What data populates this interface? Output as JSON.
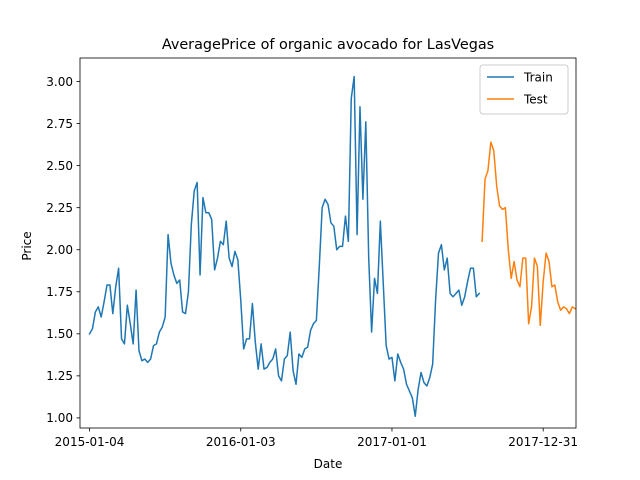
{
  "chart_data": {
    "type": "line",
    "title": "AveragePrice of organic avocado for LasVegas",
    "xlabel": "Date",
    "ylabel": "Price",
    "x_type": "date",
    "xlim": [
      "2014-12-12",
      "2018-03-20"
    ],
    "ylim": [
      0.94,
      3.14
    ],
    "x_ticks": [
      "2015-01-04",
      "2016-01-03",
      "2017-01-01",
      "2017-12-31"
    ],
    "y_ticks": [
      1.0,
      1.25,
      1.5,
      1.75,
      2.0,
      2.25,
      2.5,
      2.75,
      3.0
    ],
    "y_tick_labels": [
      "1.00",
      "1.25",
      "1.50",
      "1.75",
      "2.00",
      "2.25",
      "2.50",
      "2.75",
      "3.00"
    ],
    "grid": false,
    "legend_position": "top-right",
    "series": [
      {
        "name": "Train",
        "color": "#1f77b4",
        "points": [
          [
            "2015-01-04",
            1.5
          ],
          [
            "2015-01-11",
            1.53
          ],
          [
            "2015-01-18",
            1.63
          ],
          [
            "2015-01-25",
            1.66
          ],
          [
            "2015-02-01",
            1.6
          ],
          [
            "2015-02-08",
            1.69
          ],
          [
            "2015-02-15",
            1.79
          ],
          [
            "2015-02-22",
            1.79
          ],
          [
            "2015-03-01",
            1.62
          ],
          [
            "2015-03-08",
            1.78
          ],
          [
            "2015-03-15",
            1.89
          ],
          [
            "2015-03-22",
            1.47
          ],
          [
            "2015-03-29",
            1.44
          ],
          [
            "2015-04-05",
            1.67
          ],
          [
            "2015-04-12",
            1.56
          ],
          [
            "2015-04-19",
            1.44
          ],
          [
            "2015-04-26",
            1.76
          ],
          [
            "2015-05-03",
            1.4
          ],
          [
            "2015-05-10",
            1.34
          ],
          [
            "2015-05-17",
            1.35
          ],
          [
            "2015-05-24",
            1.33
          ],
          [
            "2015-05-31",
            1.35
          ],
          [
            "2015-06-07",
            1.43
          ],
          [
            "2015-06-14",
            1.44
          ],
          [
            "2015-06-21",
            1.51
          ],
          [
            "2015-06-28",
            1.54
          ],
          [
            "2015-07-05",
            1.6
          ],
          [
            "2015-07-12",
            2.09
          ],
          [
            "2015-07-19",
            1.92
          ],
          [
            "2015-07-26",
            1.85
          ],
          [
            "2015-08-02",
            1.8
          ],
          [
            "2015-08-09",
            1.82
          ],
          [
            "2015-08-16",
            1.63
          ],
          [
            "2015-08-23",
            1.62
          ],
          [
            "2015-08-30",
            1.75
          ],
          [
            "2015-09-06",
            2.15
          ],
          [
            "2015-09-13",
            2.35
          ],
          [
            "2015-09-20",
            2.4
          ],
          [
            "2015-09-27",
            1.85
          ],
          [
            "2015-10-04",
            2.31
          ],
          [
            "2015-10-11",
            2.22
          ],
          [
            "2015-10-18",
            2.22
          ],
          [
            "2015-10-25",
            2.18
          ],
          [
            "2015-11-01",
            1.88
          ],
          [
            "2015-11-08",
            1.95
          ],
          [
            "2015-11-15",
            2.05
          ],
          [
            "2015-11-22",
            2.03
          ],
          [
            "2015-11-29",
            2.17
          ],
          [
            "2015-12-06",
            1.95
          ],
          [
            "2015-12-13",
            1.9
          ],
          [
            "2015-12-20",
            1.99
          ],
          [
            "2015-12-27",
            1.94
          ],
          [
            "2016-01-03",
            1.7
          ],
          [
            "2016-01-10",
            1.41
          ],
          [
            "2016-01-17",
            1.47
          ],
          [
            "2016-01-24",
            1.47
          ],
          [
            "2016-01-31",
            1.68
          ],
          [
            "2016-02-07",
            1.45
          ],
          [
            "2016-02-14",
            1.29
          ],
          [
            "2016-02-21",
            1.44
          ],
          [
            "2016-02-28",
            1.29
          ],
          [
            "2016-03-06",
            1.3
          ],
          [
            "2016-03-13",
            1.33
          ],
          [
            "2016-03-20",
            1.35
          ],
          [
            "2016-03-27",
            1.41
          ],
          [
            "2016-04-03",
            1.25
          ],
          [
            "2016-04-10",
            1.22
          ],
          [
            "2016-04-17",
            1.35
          ],
          [
            "2016-04-24",
            1.37
          ],
          [
            "2016-05-01",
            1.51
          ],
          [
            "2016-05-08",
            1.28
          ],
          [
            "2016-05-15",
            1.2
          ],
          [
            "2016-05-22",
            1.38
          ],
          [
            "2016-05-29",
            1.36
          ],
          [
            "2016-06-05",
            1.41
          ],
          [
            "2016-06-12",
            1.42
          ],
          [
            "2016-06-19",
            1.52
          ],
          [
            "2016-06-26",
            1.56
          ],
          [
            "2016-07-03",
            1.58
          ],
          [
            "2016-07-10",
            1.9
          ],
          [
            "2016-07-17",
            2.25
          ],
          [
            "2016-07-24",
            2.3
          ],
          [
            "2016-07-31",
            2.27
          ],
          [
            "2016-08-07",
            2.16
          ],
          [
            "2016-08-14",
            2.14
          ],
          [
            "2016-08-21",
            2.0
          ],
          [
            "2016-08-28",
            2.02
          ],
          [
            "2016-09-04",
            2.02
          ],
          [
            "2016-09-11",
            2.2
          ],
          [
            "2016-09-18",
            2.05
          ],
          [
            "2016-09-25",
            2.9
          ],
          [
            "2016-10-02",
            3.03
          ],
          [
            "2016-10-09",
            2.09
          ],
          [
            "2016-10-16",
            2.85
          ],
          [
            "2016-10-23",
            2.3
          ],
          [
            "2016-10-30",
            2.76
          ],
          [
            "2016-11-06",
            1.95
          ],
          [
            "2016-11-13",
            1.51
          ],
          [
            "2016-11-20",
            1.83
          ],
          [
            "2016-11-27",
            1.74
          ],
          [
            "2016-12-04",
            2.17
          ],
          [
            "2016-12-11",
            1.8
          ],
          [
            "2016-12-18",
            1.43
          ],
          [
            "2016-12-25",
            1.35
          ],
          [
            "2017-01-01",
            1.36
          ],
          [
            "2017-01-08",
            1.22
          ],
          [
            "2017-01-15",
            1.38
          ],
          [
            "2017-01-22",
            1.33
          ],
          [
            "2017-01-29",
            1.29
          ],
          [
            "2017-02-05",
            1.2
          ],
          [
            "2017-02-12",
            1.16
          ],
          [
            "2017-02-19",
            1.12
          ],
          [
            "2017-02-26",
            1.01
          ],
          [
            "2017-03-05",
            1.17
          ],
          [
            "2017-03-12",
            1.27
          ],
          [
            "2017-03-19",
            1.21
          ],
          [
            "2017-03-26",
            1.19
          ],
          [
            "2017-04-02",
            1.24
          ],
          [
            "2017-04-09",
            1.32
          ],
          [
            "2017-04-16",
            1.7
          ],
          [
            "2017-04-23",
            1.98
          ],
          [
            "2017-04-30",
            2.03
          ],
          [
            "2017-05-07",
            1.88
          ],
          [
            "2017-05-14",
            1.95
          ],
          [
            "2017-05-21",
            1.74
          ],
          [
            "2017-05-28",
            1.72
          ],
          [
            "2017-06-04",
            1.74
          ],
          [
            "2017-06-11",
            1.76
          ],
          [
            "2017-06-18",
            1.67
          ],
          [
            "2017-06-25",
            1.72
          ],
          [
            "2017-07-02",
            1.81
          ],
          [
            "2017-07-09",
            1.89
          ],
          [
            "2017-07-16",
            1.89
          ],
          [
            "2017-07-23",
            1.72
          ],
          [
            "2017-07-30",
            1.74
          ]
        ]
      },
      {
        "name": "Test",
        "color": "#ff7f0e",
        "points": [
          [
            "2017-08-06",
            2.05
          ],
          [
            "2017-08-13",
            2.42
          ],
          [
            "2017-08-20",
            2.47
          ],
          [
            "2017-08-27",
            2.64
          ],
          [
            "2017-09-03",
            2.59
          ],
          [
            "2017-09-10",
            2.38
          ],
          [
            "2017-09-17",
            2.26
          ],
          [
            "2017-09-24",
            2.24
          ],
          [
            "2017-10-01",
            2.25
          ],
          [
            "2017-10-08",
            2.0
          ],
          [
            "2017-10-15",
            1.83
          ],
          [
            "2017-10-22",
            1.93
          ],
          [
            "2017-10-29",
            1.82
          ],
          [
            "2017-11-05",
            1.78
          ],
          [
            "2017-11-12",
            1.95
          ],
          [
            "2017-11-19",
            1.95
          ],
          [
            "2017-11-26",
            1.56
          ],
          [
            "2017-12-03",
            1.66
          ],
          [
            "2017-12-10",
            1.95
          ],
          [
            "2017-12-17",
            1.9
          ],
          [
            "2017-12-24",
            1.55
          ],
          [
            "2017-12-31",
            1.81
          ],
          [
            "2018-01-07",
            1.98
          ],
          [
            "2018-01-14",
            1.93
          ],
          [
            "2018-01-21",
            1.78
          ],
          [
            "2018-01-28",
            1.79
          ],
          [
            "2018-02-04",
            1.69
          ],
          [
            "2018-02-11",
            1.64
          ],
          [
            "2018-02-18",
            1.66
          ],
          [
            "2018-02-25",
            1.65
          ],
          [
            "2018-03-04",
            1.62
          ],
          [
            "2018-03-11",
            1.66
          ],
          [
            "2018-03-18",
            1.65
          ]
        ]
      }
    ]
  }
}
